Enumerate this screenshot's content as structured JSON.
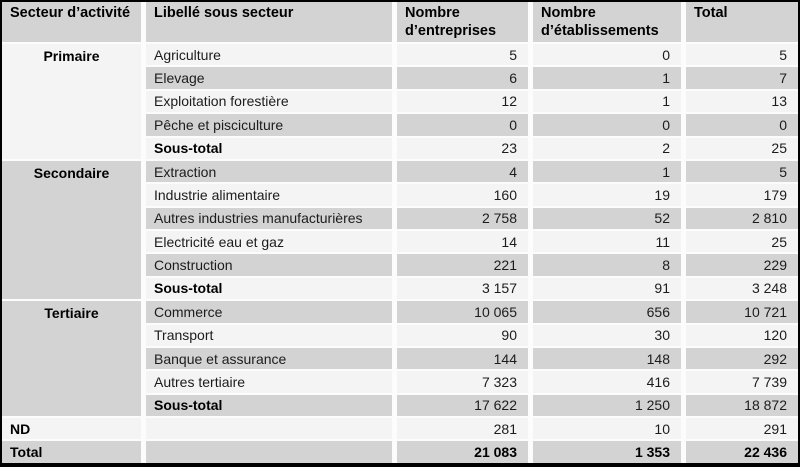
{
  "table": {
    "header": {
      "sector": "Secteur d’activité",
      "sub_sector": "Libellé sous secteur",
      "enterprises": "Nombre d’entreprises",
      "establishments": "Nombre d’établissements",
      "total": "Total"
    },
    "sections": [
      {
        "sector": "Primaire",
        "rows": [
          {
            "label": "Agriculture",
            "enterprises": "5",
            "establishments": "0",
            "total": "5"
          },
          {
            "label": "Elevage",
            "enterprises": "6",
            "establishments": "1",
            "total": "7"
          },
          {
            "label": "Exploitation forestière",
            "enterprises": "12",
            "establishments": "1",
            "total": "13"
          },
          {
            "label": "Pêche et pisciculture",
            "enterprises": "0",
            "establishments": "0",
            "total": "0"
          },
          {
            "label": "Sous-total",
            "bold": true,
            "enterprises": "23",
            "establishments": "2",
            "total": "25"
          }
        ]
      },
      {
        "sector": "Secondaire",
        "rows": [
          {
            "label": "Extraction",
            "enterprises": "4",
            "establishments": "1",
            "total": "5"
          },
          {
            "label": "Industrie alimentaire",
            "enterprises": "160",
            "establishments": "19",
            "total": "179"
          },
          {
            "label": "Autres industries manufacturières",
            "enterprises": "2 758",
            "establishments": "52",
            "total": "2 810"
          },
          {
            "label": "Electricité eau et gaz",
            "enterprises": "14",
            "establishments": "11",
            "total": "25"
          },
          {
            "label": "Construction",
            "enterprises": "221",
            "establishments": "8",
            "total": "229"
          },
          {
            "label": "Sous-total",
            "bold": true,
            "enterprises": "3 157",
            "establishments": "91",
            "total": "3 248"
          }
        ]
      },
      {
        "sector": "Tertiaire",
        "rows": [
          {
            "label": "Commerce",
            "enterprises": "10 065",
            "establishments": "656",
            "total": "10 721"
          },
          {
            "label": "Transport",
            "enterprises": "90",
            "establishments": "30",
            "total": "120"
          },
          {
            "label": "Banque et assurance",
            "enterprises": "144",
            "establishments": "148",
            "total": "292"
          },
          {
            "label": "Autres tertiaire",
            "enterprises": "7 323",
            "establishments": "416",
            "total": "7 739"
          },
          {
            "label": "Sous-total",
            "bold": true,
            "enterprises": "17 622",
            "establishments": "1 250",
            "total": "18 872"
          }
        ]
      }
    ],
    "footer_rows": [
      {
        "sector": "ND",
        "enterprises": "281",
        "establishments": "10",
        "total": "291",
        "bold_numbers": false
      },
      {
        "sector": "Total",
        "enterprises": "21 083",
        "establishments": "1 353",
        "total": "22 436",
        "bold_numbers": true
      }
    ]
  },
  "colors": {
    "band_gray": "#d3d3d3",
    "band_light": "#f4f4f4",
    "separator_white": "#fcfcfc",
    "border_black": "#000000",
    "text": "#1c1c1c"
  }
}
